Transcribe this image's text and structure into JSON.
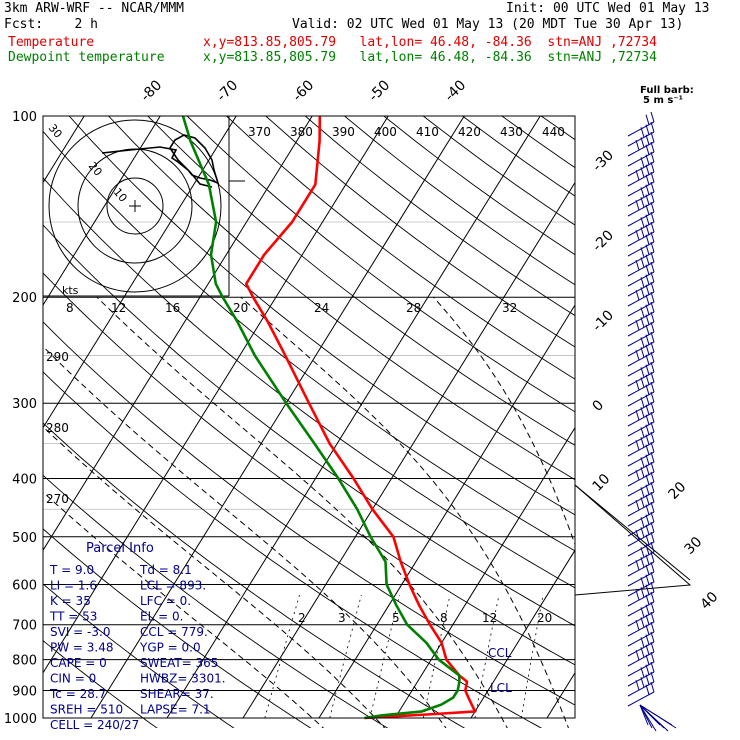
{
  "header": {
    "model": "3km ARW-WRF -- NCAR/MMM",
    "init": "Init: 00 UTC Wed 01 May 13",
    "fcst": "Fcst:    2 h",
    "valid": "Valid: 02 UTC Wed 01 May 13 (20 MDT Tue 30 Apr 13)",
    "temp_label": "Temperature",
    "temp_loc": "x,y=813.85,805.79   lat,lon= 46.48, -84.36  stn=ANJ ,72734",
    "dew_label": "Dewpoint temperature",
    "dew_loc": "x,y=813.85,805.79   lat,lon= 46.48, -84.36  stn=ANJ ,72734"
  },
  "barb_key": {
    "line1": "Full barb:",
    "line2": "5 m s⁻¹"
  },
  "colors": {
    "temperature": "#ff0000",
    "dewpoint": "#008000",
    "parcel_text": "#00008b",
    "barbs": "#00008b"
  },
  "hodo": {
    "kts_label": "kts",
    "ring_labels": [
      "10",
      "20",
      "30"
    ]
  },
  "parcel": {
    "title": "Parcel Info",
    "rows": [
      {
        "l": "T  =    9.0",
        "r": "Td =   8.1"
      },
      {
        "l": "LI =    1.6",
        "r": "LCL = 893."
      },
      {
        "l": "K  =     35",
        "r": "LFC =    0."
      },
      {
        "l": "TT =     53",
        "r": "EL  =    0."
      },
      {
        "l": "SVI = -3.0",
        "r": "CCL = 779."
      },
      {
        "l": "PW =   3.48",
        "r": "YGP =  0.0"
      },
      {
        "l": "CAPE =     0",
        "r": "SWEAT=  365"
      },
      {
        "l": "CIN =      0",
        "r": "HWBZ= 3301."
      },
      {
        "l": "Tc =   28.7",
        "r": "SHEAR=  37."
      },
      {
        "l": "SREH =  510",
        "r": "LAPSE=  7.1"
      },
      {
        "l": "CELL = 240/27",
        "r": ""
      }
    ]
  },
  "annotations": {
    "ccl": "CCL",
    "lcl": "LCL"
  },
  "chart_data": {
    "type": "line",
    "subtype": "skew-T log-p",
    "y_axis": {
      "quantity": "pressure (hPa)",
      "scale": "log",
      "ticks": [
        100,
        200,
        300,
        400,
        500,
        600,
        700,
        800,
        900,
        1000
      ]
    },
    "isotherm_labels": [
      -80,
      -70,
      -60,
      -50,
      -40,
      -30,
      -20,
      -10,
      0,
      10,
      20,
      30,
      40
    ],
    "theta_labels": [
      370,
      380,
      390,
      400,
      410,
      420,
      430,
      440
    ],
    "theta_side_labels": [
      290,
      280,
      270
    ],
    "mixing_ratio_labels": [
      2,
      3,
      5,
      8,
      12,
      20
    ],
    "hodo_wind_labels": [
      8,
      12,
      16,
      20,
      24,
      28,
      32
    ],
    "temperature_profile": [
      [
        1000,
        -4
      ],
      [
        985,
        5
      ],
      [
        975,
        10
      ],
      [
        950,
        9
      ],
      [
        925,
        8
      ],
      [
        900,
        7
      ],
      [
        870,
        6.5
      ],
      [
        850,
        5
      ],
      [
        800,
        2
      ],
      [
        750,
        0
      ],
      [
        700,
        -3
      ],
      [
        650,
        -6
      ],
      [
        600,
        -9
      ],
      [
        550,
        -12
      ],
      [
        500,
        -15
      ],
      [
        450,
        -20
      ],
      [
        400,
        -25
      ],
      [
        350,
        -31
      ],
      [
        300,
        -37
      ],
      [
        250,
        -44
      ],
      [
        220,
        -49
      ],
      [
        200,
        -53
      ],
      [
        190,
        -55
      ],
      [
        170,
        -55
      ],
      [
        150,
        -54
      ],
      [
        130,
        -54
      ],
      [
        110,
        -57
      ],
      [
        100,
        -59
      ]
    ],
    "dewpoint_profile": [
      [
        1000,
        -4
      ],
      [
        990,
        -2
      ],
      [
        975,
        3
      ],
      [
        950,
        5
      ],
      [
        925,
        6
      ],
      [
        900,
        6
      ],
      [
        870,
        5.5
      ],
      [
        850,
        5
      ],
      [
        800,
        1
      ],
      [
        750,
        -2
      ],
      [
        700,
        -6
      ],
      [
        650,
        -9
      ],
      [
        600,
        -12
      ],
      [
        550,
        -14
      ],
      [
        500,
        -18
      ],
      [
        450,
        -22
      ],
      [
        400,
        -27
      ],
      [
        350,
        -33
      ],
      [
        300,
        -40
      ],
      [
        250,
        -48
      ],
      [
        220,
        -53
      ],
      [
        200,
        -57
      ],
      [
        190,
        -59
      ],
      [
        170,
        -62
      ],
      [
        150,
        -64
      ],
      [
        130,
        -68
      ],
      [
        110,
        -74
      ],
      [
        100,
        -77
      ]
    ]
  }
}
